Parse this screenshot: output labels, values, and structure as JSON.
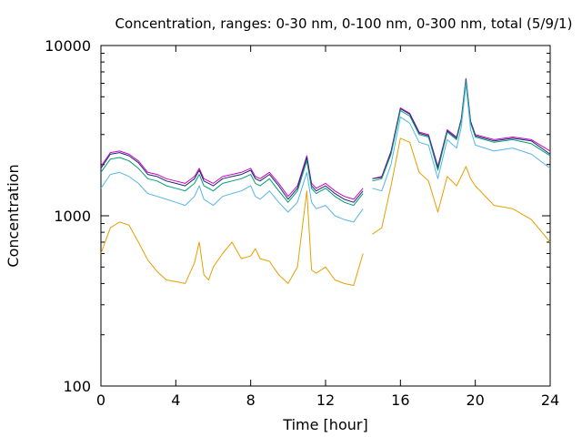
{
  "chart_data": {
    "type": "line",
    "title": "Concentration, ranges: 0-30 nm, 0-100 nm, 0-300 nm, total (5/9/1)",
    "xlabel": "Time [hour]",
    "ylabel": "Concentration",
    "xlim": [
      0,
      24
    ],
    "ylim": [
      100,
      10000
    ],
    "yscale": "log",
    "grid": false,
    "legend": "none",
    "x_ticks": [
      "0",
      "4",
      "8",
      "12",
      "16",
      "20",
      "24"
    ],
    "y_ticks": [
      "100",
      "1000",
      "10000"
    ],
    "x": [
      0,
      0.5,
      1,
      1.5,
      2,
      2.5,
      3,
      3.5,
      4,
      4.5,
      5,
      5.25,
      5.5,
      5.75,
      6,
      6.5,
      7,
      7.5,
      8,
      8.25,
      8.5,
      9,
      9.5,
      10,
      10.5,
      11,
      11.25,
      11.5,
      12,
      12.5,
      13,
      13.5,
      14,
      null,
      14.5,
      15,
      15.5,
      16,
      16.5,
      17,
      17.5,
      18,
      18.5,
      19,
      19.25,
      19.5,
      19.75,
      20,
      21,
      22,
      23,
      24
    ],
    "series": [
      {
        "color": "#cc00cc",
        "values": [
          1950,
          2350,
          2400,
          2300,
          2100,
          1800,
          1750,
          1650,
          1600,
          1550,
          1700,
          1900,
          1650,
          1600,
          1550,
          1700,
          1750,
          1800,
          1900,
          1700,
          1650,
          1800,
          1550,
          1300,
          1500,
          2250,
          1550,
          1450,
          1550,
          1400,
          1300,
          1250,
          1450,
          null,
          1650,
          1700,
          2400,
          4300,
          4000,
          3100,
          3000,
          1950,
          3200,
          2900,
          3700,
          6400,
          3600,
          3000,
          2800,
          2900,
          2800,
          2400
        ]
      },
      {
        "color": "#1a2a6c",
        "values": [
          1900,
          2300,
          2350,
          2250,
          2050,
          1750,
          1700,
          1600,
          1550,
          1500,
          1650,
          1850,
          1600,
          1550,
          1500,
          1650,
          1700,
          1750,
          1850,
          1650,
          1600,
          1750,
          1500,
          1250,
          1450,
          2200,
          1500,
          1400,
          1500,
          1350,
          1250,
          1200,
          1400,
          null,
          1650,
          1680,
          2350,
          4250,
          3950,
          3050,
          2950,
          1900,
          3150,
          2850,
          3650,
          6300,
          3550,
          2950,
          2750,
          2850,
          2750,
          2300
        ]
      },
      {
        "color": "#009e73",
        "values": [
          1800,
          2150,
          2200,
          2100,
          1900,
          1650,
          1600,
          1500,
          1450,
          1400,
          1550,
          1750,
          1500,
          1450,
          1400,
          1550,
          1600,
          1650,
          1750,
          1550,
          1500,
          1650,
          1400,
          1200,
          1400,
          2100,
          1450,
          1350,
          1450,
          1300,
          1200,
          1150,
          1350,
          null,
          1600,
          1650,
          2300,
          4150,
          3850,
          3000,
          2900,
          1850,
          3100,
          2800,
          3600,
          6200,
          3500,
          2900,
          2700,
          2800,
          2650,
          2250
        ]
      },
      {
        "color": "#56b4e9",
        "values": [
          1450,
          1750,
          1800,
          1700,
          1550,
          1350,
          1300,
          1250,
          1200,
          1150,
          1300,
          1500,
          1250,
          1200,
          1150,
          1300,
          1350,
          1400,
          1500,
          1300,
          1250,
          1400,
          1200,
          1050,
          1200,
          1800,
          1200,
          1100,
          1150,
          1000,
          950,
          920,
          1100,
          null,
          1450,
          1400,
          2000,
          3800,
          3500,
          2700,
          2600,
          1650,
          2800,
          2500,
          3300,
          5900,
          3200,
          2600,
          2400,
          2500,
          2300,
          1900
        ]
      },
      {
        "color": "#e69f00",
        "values": [
          600,
          850,
          920,
          880,
          700,
          550,
          470,
          420,
          410,
          400,
          530,
          700,
          450,
          420,
          500,
          600,
          700,
          560,
          580,
          640,
          560,
          540,
          450,
          400,
          500,
          1400,
          480,
          460,
          500,
          420,
          400,
          390,
          600,
          null,
          780,
          850,
          1500,
          2850,
          2700,
          1800,
          1600,
          1050,
          1700,
          1500,
          1700,
          1950,
          1650,
          1500,
          1150,
          1100,
          950,
          700
        ]
      }
    ]
  }
}
